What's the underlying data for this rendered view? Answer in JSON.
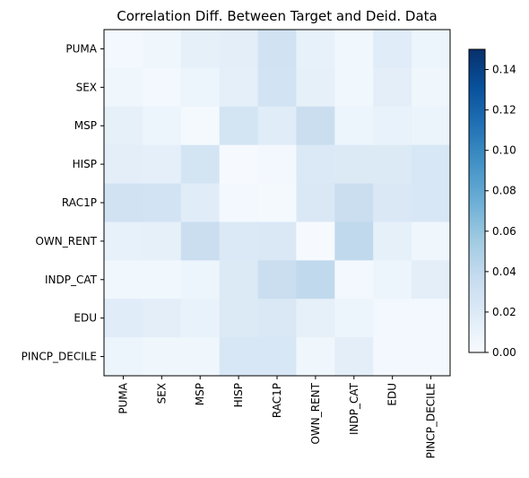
{
  "chart_data": {
    "type": "heatmap",
    "title": "Correlation Diff. Between Target and Deid. Data",
    "rows": [
      "PUMA",
      "SEX",
      "MSP",
      "HISP",
      "RAC1P",
      "OWN_RENT",
      "INDP_CAT",
      "EDU",
      "PINCP_DECILE"
    ],
    "columns": [
      "PUMA",
      "SEX",
      "MSP",
      "HISP",
      "RAC1P",
      "OWN_RENT",
      "INDP_CAT",
      "EDU",
      "PINCP_DECILE"
    ],
    "values": [
      [
        0.004,
        0.006,
        0.013,
        0.015,
        0.029,
        0.012,
        0.005,
        0.017,
        0.008
      ],
      [
        0.006,
        0.004,
        0.008,
        0.014,
        0.028,
        0.013,
        0.005,
        0.015,
        0.006
      ],
      [
        0.013,
        0.008,
        0.002,
        0.027,
        0.017,
        0.034,
        0.008,
        0.011,
        0.009
      ],
      [
        0.015,
        0.014,
        0.027,
        0.001,
        0.003,
        0.021,
        0.02,
        0.02,
        0.024
      ],
      [
        0.029,
        0.028,
        0.017,
        0.003,
        0.002,
        0.022,
        0.034,
        0.022,
        0.024
      ],
      [
        0.012,
        0.013,
        0.034,
        0.021,
        0.022,
        0.001,
        0.04,
        0.013,
        0.006
      ],
      [
        0.005,
        0.005,
        0.008,
        0.02,
        0.034,
        0.04,
        0.003,
        0.008,
        0.015
      ],
      [
        0.017,
        0.015,
        0.011,
        0.02,
        0.022,
        0.013,
        0.008,
        0.003,
        0.003
      ],
      [
        0.008,
        0.006,
        0.006,
        0.024,
        0.024,
        0.006,
        0.015,
        0.003,
        0.003
      ]
    ],
    "colorbar": {
      "min": 0,
      "max": 0.15,
      "ticks": [
        "0.00",
        "0.02",
        "0.04",
        "0.06",
        "0.08",
        "0.10",
        "0.12",
        "0.14"
      ],
      "colormap": "Blues"
    },
    "grid": false
  }
}
